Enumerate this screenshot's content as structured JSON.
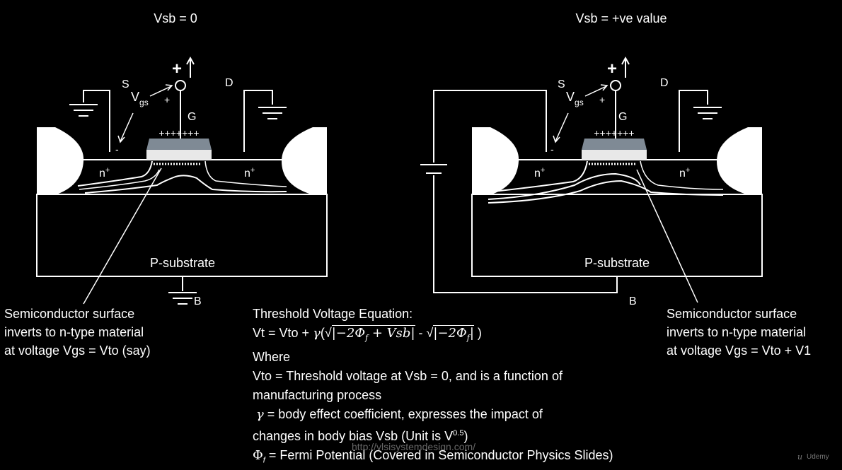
{
  "left_diagram": {
    "title": "Vsb = 0",
    "source": "S",
    "drain": "D",
    "gate": "G",
    "body": "B",
    "vgs_main": "V",
    "vgs_sub": "gs",
    "plus_sign": "+",
    "minus_sign": "-",
    "gate_charge": "+++++++",
    "n_plus_left": "n",
    "n_plus_right": "n",
    "n_plus_sup": "+",
    "substrate": "P-substrate",
    "caption": [
      "Semiconductor surface",
      "inverts to n-type material",
      "at voltage Vgs = Vto (say)"
    ]
  },
  "right_diagram": {
    "title": "Vsb = +ve value",
    "source": "S",
    "drain": "D",
    "gate": "G",
    "body": "B",
    "vgs_main": "V",
    "vgs_sub": "gs",
    "plus_sign": "+",
    "minus_sign": "-",
    "gate_charge": "+++++++",
    "n_plus_left": "n",
    "n_plus_right": "n",
    "n_plus_sup": "+",
    "substrate": "P-substrate",
    "caption": [
      "Semiconductor surface",
      "inverts to n-type material",
      "at voltage Vgs = Vto + V1"
    ]
  },
  "equation": {
    "heading": "Threshold Voltage Equation:",
    "formula_prefix": "Vt = Vto + ",
    "gamma": "γ",
    "formula_open": "(",
    "sqrt": "√",
    "term1": "|−2Φ",
    "phi_sub": "f",
    "term1_rest": " + Vsb|",
    "minus": " - ",
    "term2": "|−2Φ",
    "term2_rest": "|",
    "formula_close": " )",
    "where": "Where",
    "vto_line1": "Vto = Threshold voltage at Vsb = 0, and is a function of",
    "vto_line2": "manufacturing process",
    "gamma_line1_rest": " = body effect coefficient, expresses the impact of",
    "gamma_line2": "changes in body bias Vsb (Unit is V",
    "gamma_line2_sup": "0.5",
    "gamma_line2_end": ")",
    "phi": "Φ",
    "phi_line_rest": " = Fermi Potential (Covered in Semiconductor Physics Slides)"
  },
  "watermark": "http://vlsisystemdesign.com/",
  "brand": "Udemy",
  "brand_icon": "u"
}
